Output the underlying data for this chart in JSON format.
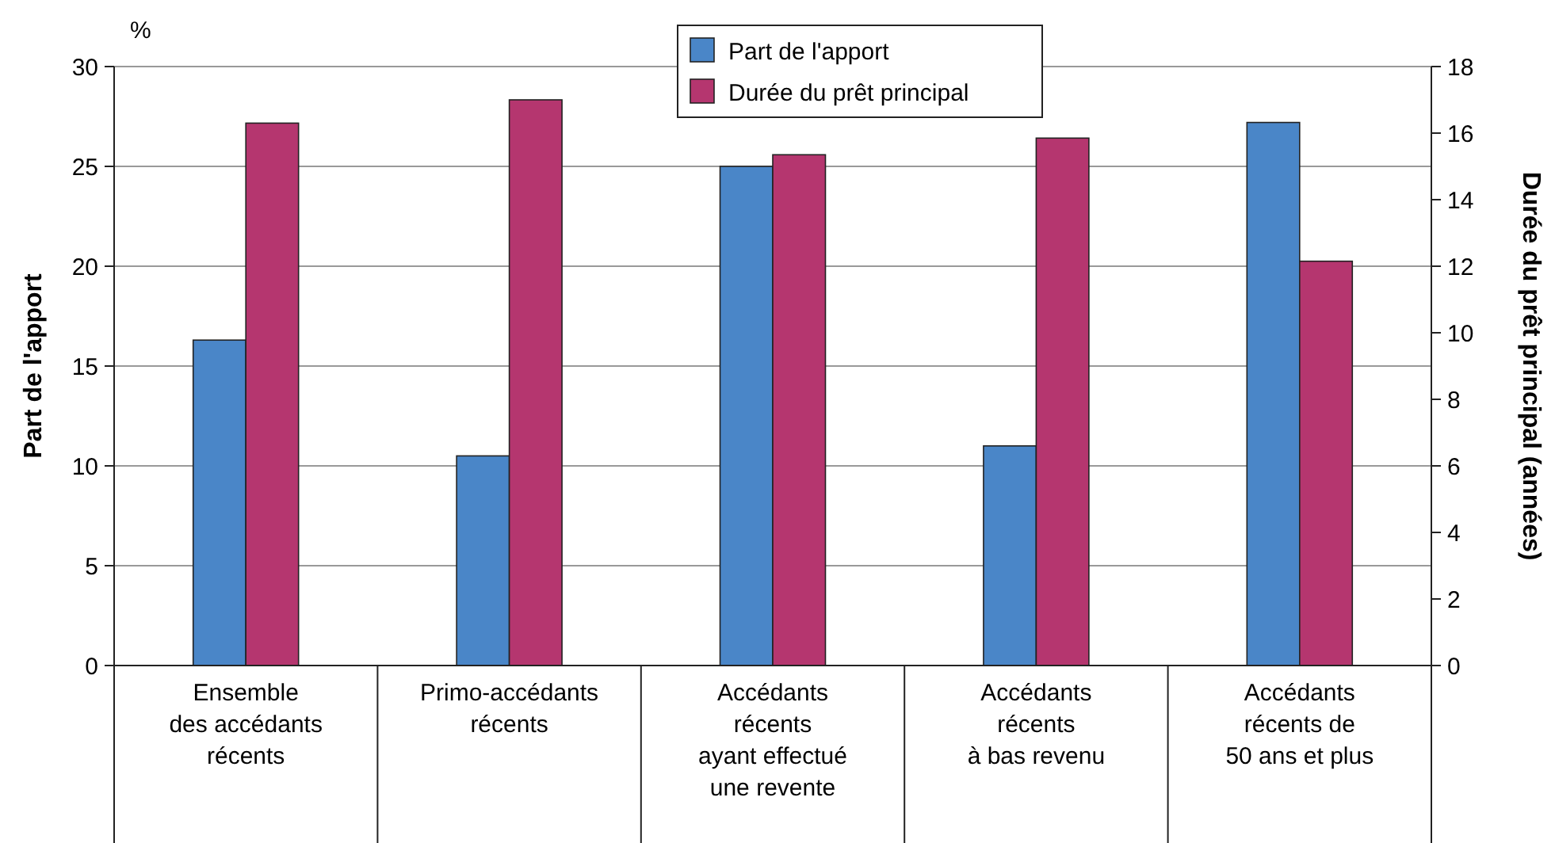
{
  "chart_data": {
    "type": "bar",
    "categories": [
      "Ensemble\ndes accédants\nrécents",
      "Primo-accédants\nrécents",
      "Accédants\nrécents\nayant effectué\nune revente",
      "Accédants\nrécents\nà bas revenu",
      "Accédants\nrécents de\n50 ans et plus"
    ],
    "series": [
      {
        "name": "Part de l'apport",
        "color": "#4a86c8",
        "values": [
          16.3,
          10.5,
          25.0,
          11.0,
          27.2
        ]
      },
      {
        "name": "Durée du prêt principal",
        "color": "#b5366f",
        "axis": "y2",
        "values": [
          16.3,
          17.0,
          15.35,
          15.85,
          12.15
        ]
      }
    ],
    "ylabel": "Part de l'apport",
    "y2label": "Durée du prêt principal (années)",
    "annotations": [
      "%"
    ],
    "ylim": [
      0,
      30
    ],
    "yticks": [
      0,
      5,
      10,
      15,
      20,
      25,
      30
    ],
    "y2lim": [
      0,
      18
    ],
    "y2ticks": [
      0,
      2,
      4,
      6,
      8,
      10,
      12,
      14,
      16,
      18
    ],
    "grid": "y",
    "legend": "top"
  }
}
